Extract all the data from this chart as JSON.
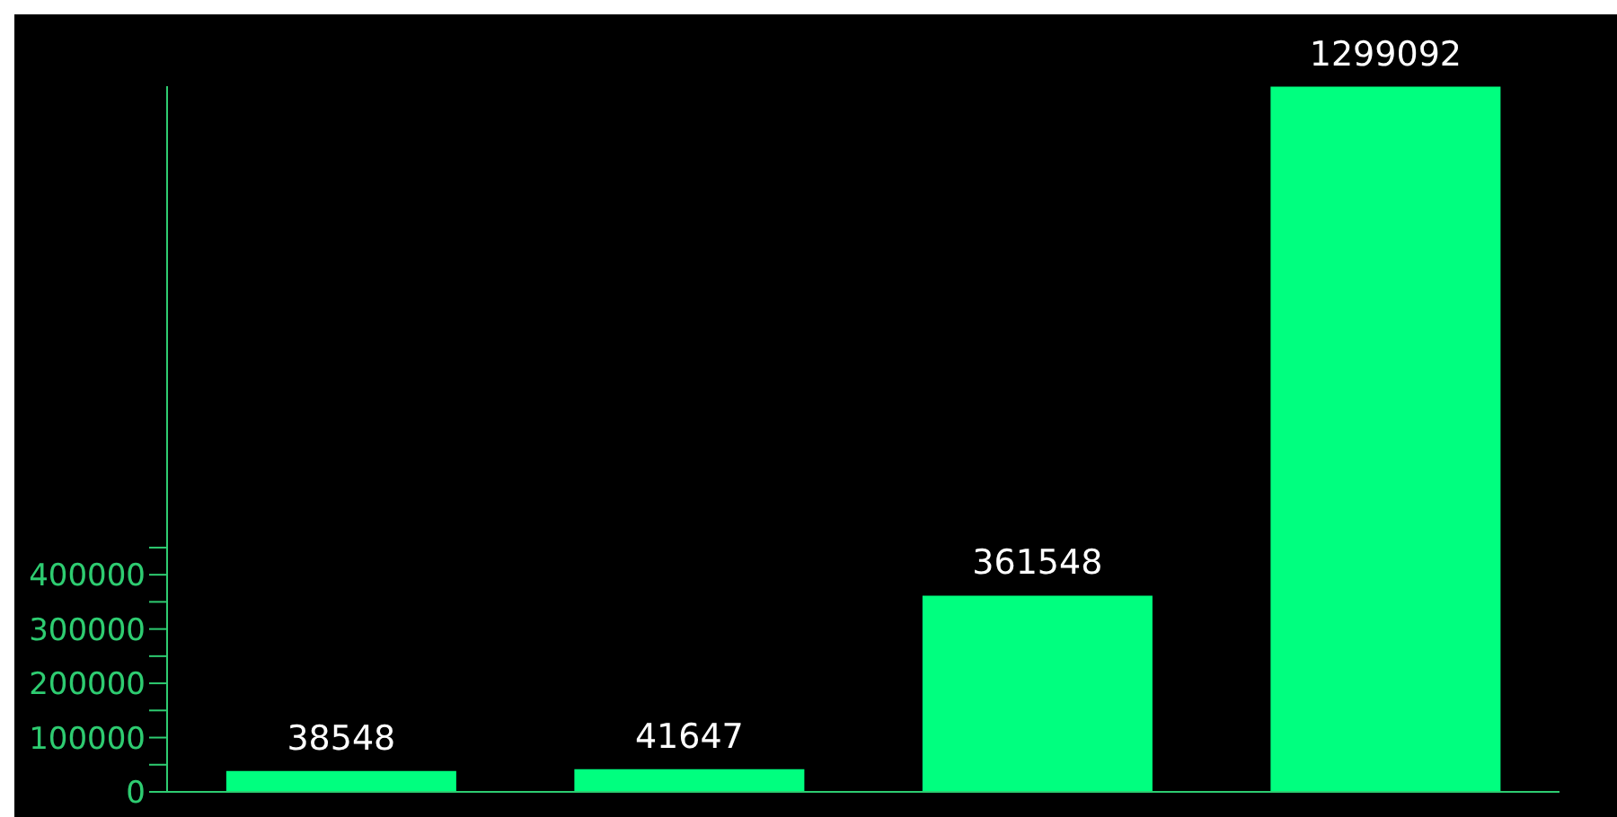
{
  "chart_data": {
    "type": "bar",
    "categories": [
      null,
      null,
      null,
      null
    ],
    "values": [
      38548,
      41647,
      361548,
      1299092
    ],
    "color": "#00ff7f",
    "ylim": [
      0,
      1300000
    ],
    "yticks": [
      0,
      {
        "value": 50000,
        "label": null
      },
      100000,
      {
        "value": 150000,
        "label": null
      },
      200000,
      {
        "value": 250000,
        "label": null
      },
      300000,
      {
        "value": 350000,
        "label": null
      },
      400000,
      {
        "value": 450000,
        "label": null
      }
    ],
    "data_labels": true
  }
}
